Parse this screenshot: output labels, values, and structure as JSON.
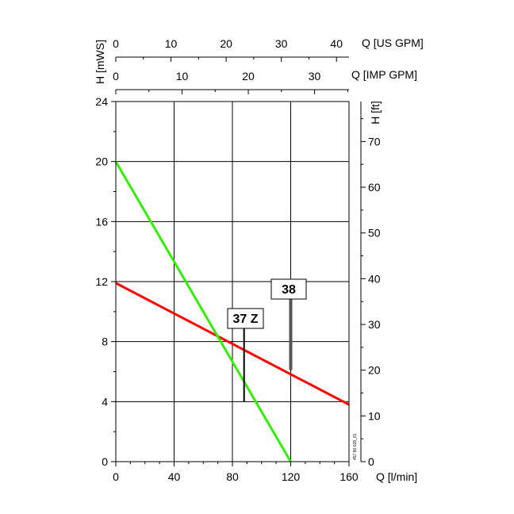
{
  "chart_data": {
    "type": "line",
    "x_axis": {
      "label": "Q [l/min]",
      "ticks": [
        "0",
        "40",
        "80",
        "120",
        "160"
      ],
      "range": [
        0,
        160
      ]
    },
    "y_axis_left": {
      "label": "H [mWS]",
      "ticks": [
        "0",
        "4",
        "8",
        "12",
        "16",
        "20",
        "24"
      ],
      "range": [
        0,
        24
      ]
    },
    "y_axis_right": {
      "label": "H [ft]",
      "ticks": [
        "0",
        "10",
        "20",
        "30",
        "40",
        "50",
        "60",
        "70"
      ],
      "range_ft": [
        0,
        78.74
      ]
    },
    "top_axis_us": {
      "label": "Q [US GPM]",
      "ticks": [
        "0",
        "10",
        "20",
        "30",
        "40"
      ],
      "max": 42.27
    },
    "top_axis_imp": {
      "label": "Q [IMP GPM]",
      "ticks": [
        "0",
        "10",
        "20",
        "30"
      ],
      "max": 35.2
    },
    "grid": true,
    "series": [
      {
        "name": "38",
        "color": "#ff0000",
        "x": [
          0,
          160
        ],
        "y": [
          11.9,
          3.8
        ],
        "label_x": 120,
        "label_y": 6.1
      },
      {
        "name": "37 Z",
        "color": "#33ee00",
        "x": [
          0,
          120
        ],
        "y": [
          20,
          0
        ],
        "label_x": 88,
        "label_y": 4.0
      }
    ],
    "code": "457 80 028_01"
  }
}
